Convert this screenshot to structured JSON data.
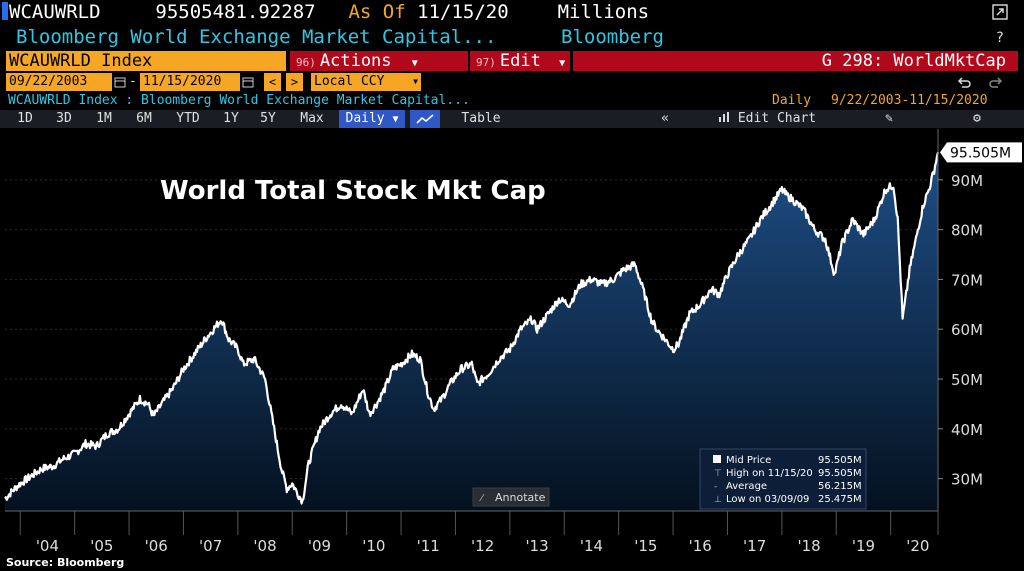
{
  "header": {
    "ticker": "WCAUWRLD",
    "value": "95505481.92287",
    "as_of_label": "As Of",
    "date": "11/15/20",
    "units": "Millions",
    "description": "Bloomberg World Exchange Market Capital...",
    "source_name": "Bloomberg"
  },
  "toolbar": {
    "security": "WCAUWRLD Index",
    "actions_num": "96)",
    "actions_label": "Actions",
    "edit_num": "97)",
    "edit_label": "Edit",
    "page_label": "G 298: WorldMktCap",
    "start_date": "09/22/2003",
    "end_date": "11/15/2020",
    "currency": "Local CCY",
    "info_line": "WCAUWRLD Index : Bloomberg World Exchange Market Capital...",
    "period": "Daily",
    "range": "9/22/2003-11/15/2020"
  },
  "ranges": [
    "1D",
    "3D",
    "1M",
    "6M",
    "YTD",
    "1Y",
    "5Y",
    "Max"
  ],
  "frequency": "Daily",
  "table_label": "Table",
  "edit_chart_label": "Edit Chart",
  "annotate_label": "Annotate",
  "source_note": "Source: Bloomberg",
  "legend": {
    "mid_price_label": "Mid Price",
    "mid_price": "95.505M",
    "high_label": "High on 11/15/20",
    "high": "95.505M",
    "avg_label": "Average",
    "avg": "56.215M",
    "low_label": "Low on 03/09/09",
    "low": "25.475M"
  },
  "chart_data": {
    "type": "area",
    "title": "World Total Stock Mkt Cap",
    "last_value_label": "95.505M",
    "x_ticks": [
      "'04",
      "'05",
      "'06",
      "'07",
      "'08",
      "'09",
      "'10",
      "'11",
      "'12",
      "'13",
      "'14",
      "'15",
      "'16",
      "'17",
      "'18",
      "'19",
      "'20"
    ],
    "y_ticks": [
      {
        "value": 30,
        "label": "30M"
      },
      {
        "value": 40,
        "label": "40M"
      },
      {
        "value": 50,
        "label": "50M"
      },
      {
        "value": 60,
        "label": "60M"
      },
      {
        "value": 70,
        "label": "70M"
      },
      {
        "value": 80,
        "label": "80M"
      },
      {
        "value": 90,
        "label": "90M"
      }
    ],
    "ylim": [
      23.5,
      99
    ],
    "xlim": [
      2003.72,
      2020.87
    ],
    "x": [
      2003.72,
      2003.9,
      2004.0,
      2004.2,
      2004.4,
      2004.6,
      2004.8,
      2005.0,
      2005.2,
      2005.4,
      2005.6,
      2005.8,
      2006.0,
      2006.2,
      2006.35,
      2006.45,
      2006.6,
      2006.8,
      2007.0,
      2007.2,
      2007.4,
      2007.55,
      2007.7,
      2007.83,
      2008.0,
      2008.1,
      2008.3,
      2008.5,
      2008.7,
      2008.8,
      2008.9,
      2009.0,
      2009.1,
      2009.19,
      2009.3,
      2009.5,
      2009.7,
      2009.9,
      2010.1,
      2010.3,
      2010.42,
      2010.55,
      2010.7,
      2010.85,
      2011.0,
      2011.2,
      2011.35,
      2011.5,
      2011.6,
      2011.75,
      2011.9,
      2012.1,
      2012.3,
      2012.4,
      2012.6,
      2012.8,
      2013.0,
      2013.2,
      2013.4,
      2013.5,
      2013.7,
      2013.9,
      2014.1,
      2014.3,
      2014.5,
      2014.7,
      2014.9,
      2015.1,
      2015.3,
      2015.45,
      2015.6,
      2015.7,
      2015.85,
      2016.0,
      2016.1,
      2016.3,
      2016.5,
      2016.7,
      2016.85,
      2017.0,
      2017.2,
      2017.4,
      2017.6,
      2017.8,
      2018.0,
      2018.08,
      2018.2,
      2018.4,
      2018.6,
      2018.8,
      2018.97,
      2019.1,
      2019.3,
      2019.5,
      2019.7,
      2019.9,
      2020.05,
      2020.13,
      2020.22,
      2020.35,
      2020.5,
      2020.6,
      2020.7,
      2020.8,
      2020.87
    ],
    "values": [
      26,
      28,
      29,
      30.5,
      32,
      32.5,
      34,
      35,
      37,
      36.5,
      39,
      40,
      43,
      46,
      45,
      42.5,
      45,
      48,
      52,
      55,
      58,
      60,
      62,
      58,
      56,
      53,
      54,
      50,
      38,
      32,
      28,
      29,
      27,
      25.5,
      33,
      40,
      43,
      45,
      43,
      48,
      43,
      45,
      48,
      52,
      53,
      55,
      54,
      47,
      44,
      46,
      49,
      52,
      53,
      49,
      51,
      54,
      56,
      60,
      62,
      60,
      63,
      66,
      65,
      69,
      70,
      69,
      70,
      72,
      73,
      68,
      62,
      60,
      58,
      56,
      57,
      63,
      65,
      68,
      67,
      71,
      75,
      78,
      82,
      85,
      88,
      87,
      86,
      84,
      80,
      78,
      71,
      77,
      82,
      79,
      82,
      88,
      89,
      82,
      62,
      72,
      80,
      85,
      88,
      92,
      95.505
    ]
  }
}
